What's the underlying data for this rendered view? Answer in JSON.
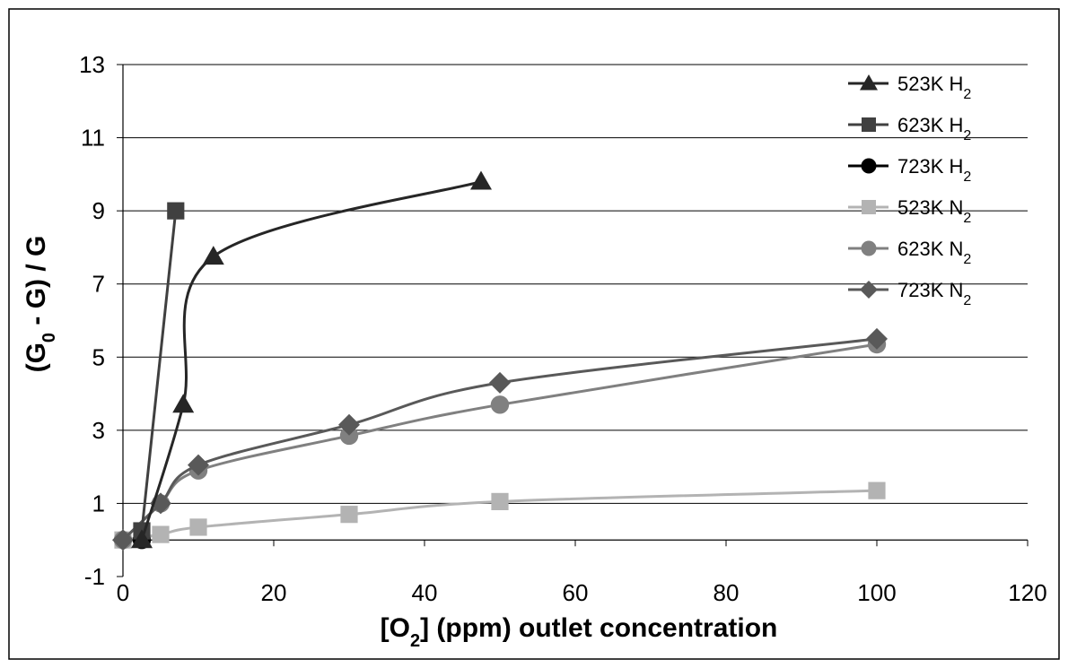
{
  "chart_data": {
    "type": "scatter",
    "xlabel_parts": [
      {
        "t": "[O",
        "sub": false
      },
      {
        "t": "2",
        "sub": true
      },
      {
        "t": "] (ppm) outlet concentration",
        "sub": false
      }
    ],
    "ylabel_parts": [
      {
        "t": "(G",
        "sub": false
      },
      {
        "t": "0",
        "sub": true
      },
      {
        "t": " - G) / G",
        "sub": false
      }
    ],
    "xlim": [
      0,
      120
    ],
    "ylim": [
      -1,
      13
    ],
    "x_ticks": [
      "0",
      "20",
      "40",
      "60",
      "80",
      "100",
      "120"
    ],
    "y_ticks": [
      "-1",
      "1",
      "3",
      "5",
      "7",
      "9",
      "11",
      "13"
    ],
    "grid": "horizontal",
    "legend_position": "right",
    "series": [
      {
        "name_main": "523K H",
        "name_sub": "2",
        "marker": "triangle",
        "color": "#262626",
        "x": [
          2.5,
          8,
          12,
          47.5
        ],
        "y": [
          0,
          3.7,
          7.75,
          9.8
        ]
      },
      {
        "name_main": "623K H",
        "name_sub": "2",
        "marker": "square",
        "color": "#404040",
        "x": [
          2.5,
          7
        ],
        "y": [
          0.25,
          9
        ]
      },
      {
        "name_main": "723K H",
        "name_sub": "2",
        "marker": "circle",
        "color": "#000000",
        "x": [
          2.5
        ],
        "y": [
          0
        ]
      },
      {
        "name_main": "523K N",
        "name_sub": "2",
        "marker": "square",
        "color": "#b3b3b3",
        "x": [
          0,
          5,
          10,
          30,
          50,
          100
        ],
        "y": [
          0,
          0.15,
          0.35,
          0.7,
          1.05,
          1.35
        ]
      },
      {
        "name_main": "623K N",
        "name_sub": "2",
        "marker": "circle",
        "color": "#808080",
        "x": [
          0,
          5,
          10,
          30,
          50,
          100
        ],
        "y": [
          0,
          1,
          1.9,
          2.85,
          3.7,
          5.35
        ]
      },
      {
        "name_main": "723K N",
        "name_sub": "2",
        "marker": "diamond",
        "color": "#595959",
        "x": [
          0,
          5,
          10,
          30,
          50,
          100
        ],
        "y": [
          0,
          1,
          2.05,
          3.15,
          4.3,
          5.5
        ]
      }
    ]
  }
}
